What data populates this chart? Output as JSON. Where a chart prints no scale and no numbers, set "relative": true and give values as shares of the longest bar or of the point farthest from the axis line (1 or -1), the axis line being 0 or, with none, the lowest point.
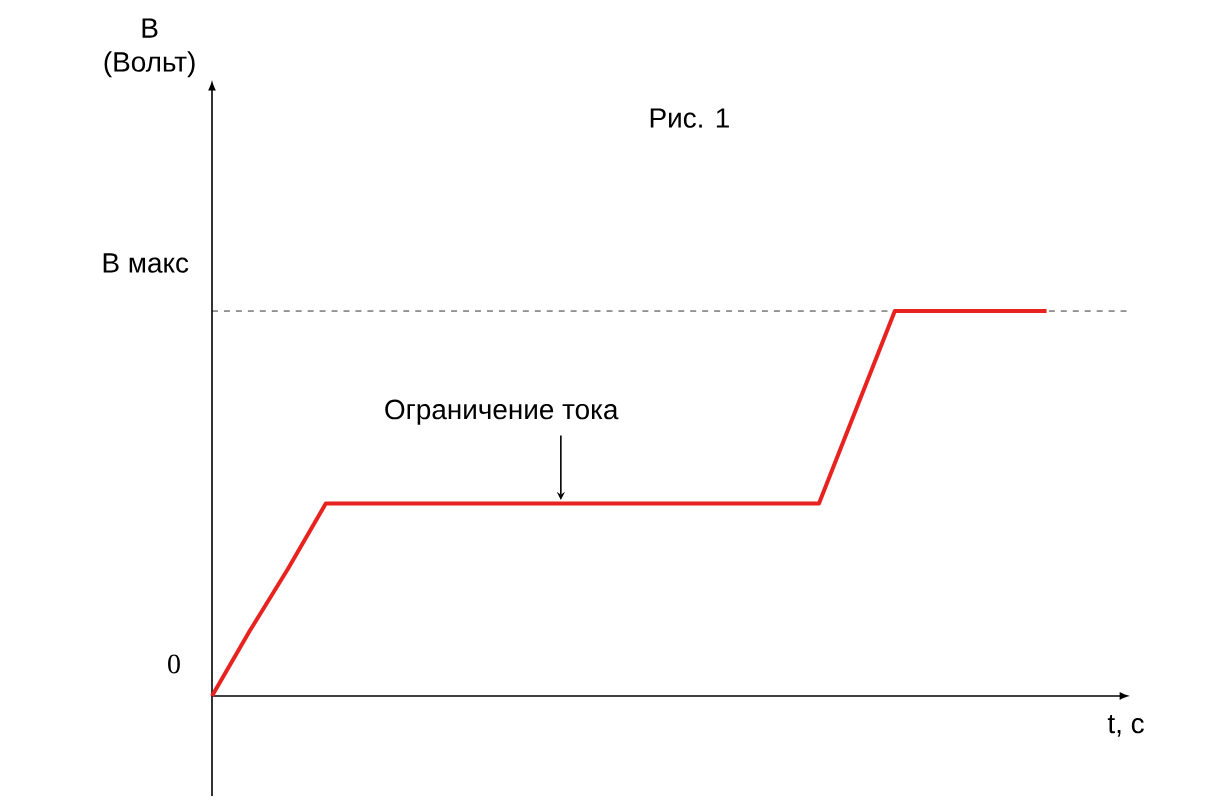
{
  "chart_data": {
    "type": "line",
    "title": "Рис. 1",
    "xlabel": "t, c",
    "categories": [
      null,
      null,
      null,
      null,
      null,
      null,
      null,
      null,
      null,
      null,
      null,
      null,
      null,
      null,
      null,
      null,
      null,
      null,
      null,
      null,
      null,
      null,
      null
    ],
    "series": [
      {
        "color": "#e8231f",
        "values": [
          0,
          0.17,
          0.33,
          0.5,
          0.5,
          0.5,
          0.5,
          0.5,
          0.5,
          0.5,
          0.5,
          0.5,
          0.5,
          0.5,
          0.5,
          0.5,
          0.5,
          0.75,
          1,
          1,
          1,
          1,
          1
        ]
      }
    ],
    "relative": true,
    "marker": "none",
    "line_style": "solid",
    "ref_lines": [
      {
        "axis": "y",
        "value": 1,
        "label": null,
        "line_style": "dashed",
        "color": "#000000"
      }
    ],
    "annotations": [
      "Ограничение тока",
      "0",
      "В макс",
      "В (Вольт)"
    ]
  }
}
